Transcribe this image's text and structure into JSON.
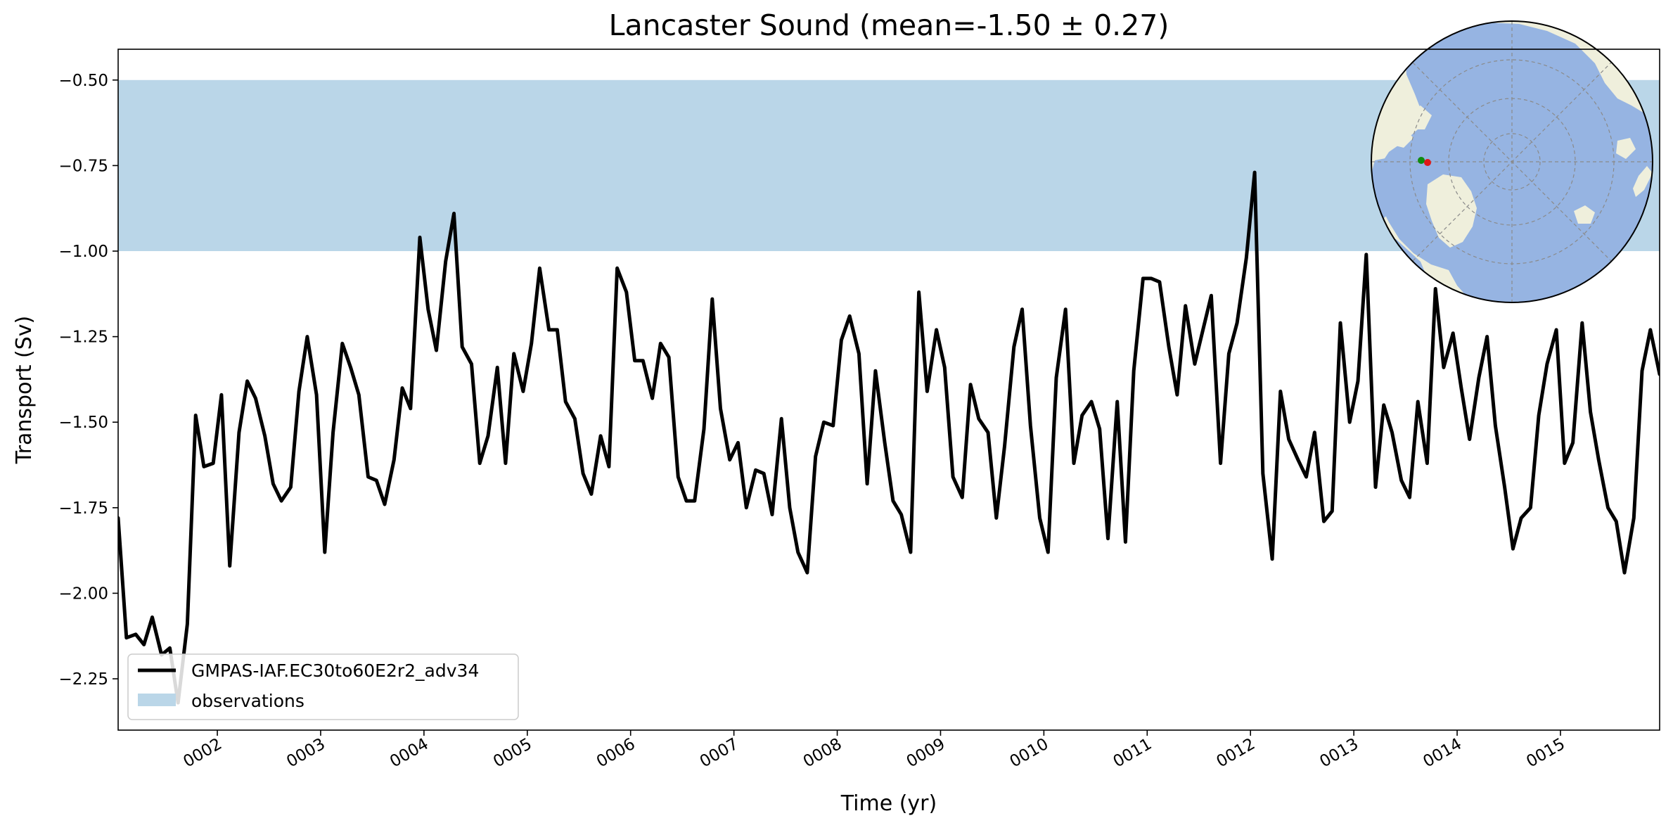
{
  "chart_data": {
    "type": "line",
    "title": "Lancaster Sound (mean=-1.50 ± 0.27)",
    "xlabel": "Time (yr)",
    "ylabel": "Transport (Sv)",
    "xlim": [
      1.04,
      15.96
    ],
    "ylim": [
      -2.4,
      -0.41
    ],
    "xticks": [
      2,
      3,
      4,
      5,
      6,
      7,
      8,
      9,
      10,
      11,
      12,
      13,
      14,
      15
    ],
    "xtick_labels": [
      "0002",
      "0003",
      "0004",
      "0005",
      "0006",
      "0007",
      "0008",
      "0009",
      "0010",
      "0011",
      "0012",
      "0013",
      "0014",
      "0015"
    ],
    "yticks": [
      -0.5,
      -0.75,
      -1.0,
      -1.25,
      -1.5,
      -1.75,
      -2.0,
      -2.25
    ],
    "ytick_labels": [
      "−0.50",
      "−0.75",
      "−1.00",
      "−1.25",
      "−1.50",
      "−1.75",
      "−2.00",
      "−2.25"
    ],
    "grid": false,
    "legend_position": "lower-left",
    "observations": {
      "name": "observations",
      "y_range": [
        -1.0,
        -0.5
      ],
      "color": "#bad6e8"
    },
    "series": [
      {
        "name": "GMPAS-IAF.EC30to60E2r2_adv34",
        "color": "#000000",
        "x": [
          1.04,
          1.12,
          1.21,
          1.29,
          1.37,
          1.46,
          1.54,
          1.62,
          1.71,
          1.79,
          1.87,
          1.96,
          2.04,
          2.12,
          2.21,
          2.29,
          2.37,
          2.46,
          2.54,
          2.62,
          2.71,
          2.79,
          2.87,
          2.96,
          3.04,
          3.12,
          3.21,
          3.29,
          3.37,
          3.46,
          3.54,
          3.62,
          3.71,
          3.79,
          3.87,
          3.96,
          4.04,
          4.12,
          4.21,
          4.29,
          4.37,
          4.46,
          4.54,
          4.62,
          4.71,
          4.79,
          4.87,
          4.96,
          5.04,
          5.12,
          5.21,
          5.29,
          5.37,
          5.46,
          5.54,
          5.62,
          5.71,
          5.79,
          5.87,
          5.96,
          6.04,
          6.12,
          6.21,
          6.29,
          6.37,
          6.46,
          6.54,
          6.62,
          6.71,
          6.79,
          6.87,
          6.96,
          7.04,
          7.12,
          7.21,
          7.29,
          7.37,
          7.46,
          7.54,
          7.62,
          7.71,
          7.79,
          7.87,
          7.96,
          8.04,
          8.12,
          8.21,
          8.29,
          8.37,
          8.46,
          8.54,
          8.62,
          8.71,
          8.79,
          8.87,
          8.96,
          9.04,
          9.12,
          9.21,
          9.29,
          9.37,
          9.46,
          9.54,
          9.62,
          9.71,
          9.79,
          9.87,
          9.96,
          10.04,
          10.12,
          10.21,
          10.29,
          10.37,
          10.46,
          10.54,
          10.62,
          10.71,
          10.79,
          10.87,
          10.96,
          11.04,
          11.12,
          11.21,
          11.29,
          11.37,
          11.46,
          11.54,
          11.62,
          11.71,
          11.79,
          11.87,
          11.96,
          12.04,
          12.12,
          12.21,
          12.29,
          12.37,
          12.46,
          12.54,
          12.62,
          12.71,
          12.79,
          12.87,
          12.96,
          13.04,
          13.12,
          13.21,
          13.29,
          13.37,
          13.46,
          13.54,
          13.62,
          13.71,
          13.79,
          13.87,
          13.96,
          14.04,
          14.12,
          14.21,
          14.29,
          14.37,
          14.46,
          14.54,
          14.62,
          14.71,
          14.79,
          14.87,
          14.96,
          15.04,
          15.12,
          15.21,
          15.29,
          15.37,
          15.46,
          15.54,
          15.62,
          15.71,
          15.79,
          15.87,
          15.96
        ],
        "y": [
          -1.78,
          -2.13,
          -2.12,
          -2.15,
          -2.07,
          -2.18,
          -2.16,
          -2.32,
          -2.09,
          -1.48,
          -1.63,
          -1.62,
          -1.42,
          -1.92,
          -1.53,
          -1.38,
          -1.43,
          -1.54,
          -1.68,
          -1.73,
          -1.69,
          -1.41,
          -1.25,
          -1.42,
          -1.88,
          -1.53,
          -1.27,
          -1.34,
          -1.42,
          -1.66,
          -1.67,
          -1.74,
          -1.61,
          -1.4,
          -1.46,
          -0.96,
          -1.17,
          -1.29,
          -1.03,
          -0.89,
          -1.28,
          -1.33,
          -1.62,
          -1.54,
          -1.34,
          -1.62,
          -1.3,
          -1.41,
          -1.27,
          -1.05,
          -1.23,
          -1.23,
          -1.44,
          -1.49,
          -1.65,
          -1.71,
          -1.54,
          -1.63,
          -1.05,
          -1.12,
          -1.32,
          -1.32,
          -1.43,
          -1.27,
          -1.31,
          -1.66,
          -1.73,
          -1.73,
          -1.52,
          -1.14,
          -1.46,
          -1.61,
          -1.56,
          -1.75,
          -1.64,
          -1.65,
          -1.77,
          -1.49,
          -1.75,
          -1.88,
          -1.94,
          -1.6,
          -1.5,
          -1.51,
          -1.26,
          -1.19,
          -1.3,
          -1.68,
          -1.35,
          -1.56,
          -1.73,
          -1.77,
          -1.88,
          -1.12,
          -1.41,
          -1.23,
          -1.34,
          -1.66,
          -1.72,
          -1.39,
          -1.49,
          -1.53,
          -1.78,
          -1.57,
          -1.28,
          -1.17,
          -1.51,
          -1.78,
          -1.88,
          -1.37,
          -1.17,
          -1.62,
          -1.48,
          -1.44,
          -1.52,
          -1.84,
          -1.44,
          -1.85,
          -1.35,
          -1.08,
          -1.08,
          -1.09,
          -1.28,
          -1.42,
          -1.16,
          -1.33,
          -1.23,
          -1.13,
          -1.62,
          -1.3,
          -1.21,
          -1.02,
          -0.77,
          -1.65,
          -1.9,
          -1.41,
          -1.55,
          -1.61,
          -1.66,
          -1.53,
          -1.79,
          -1.76,
          -1.21,
          -1.5,
          -1.38,
          -1.01,
          -1.69,
          -1.45,
          -1.53,
          -1.67,
          -1.72,
          -1.44,
          -1.62,
          -1.11,
          -1.34,
          -1.24,
          -1.4,
          -1.55,
          -1.37,
          -1.25,
          -1.51,
          -1.69,
          -1.87,
          -1.78,
          -1.75,
          -1.48,
          -1.33,
          -1.23,
          -1.62,
          -1.56,
          -1.21,
          -1.47,
          -1.61,
          -1.75,
          -1.79,
          -1.94,
          -1.78,
          -1.35,
          -1.23,
          -1.36
        ]
      }
    ],
    "inset_map": {
      "type": "polar-stereographic-map",
      "ocean_color": "#96b4e2",
      "land_color": "#efefdc",
      "markers": [
        {
          "name": "green-marker",
          "color": "#108c10"
        },
        {
          "name": "red-marker",
          "color": "#e01818"
        }
      ]
    }
  }
}
